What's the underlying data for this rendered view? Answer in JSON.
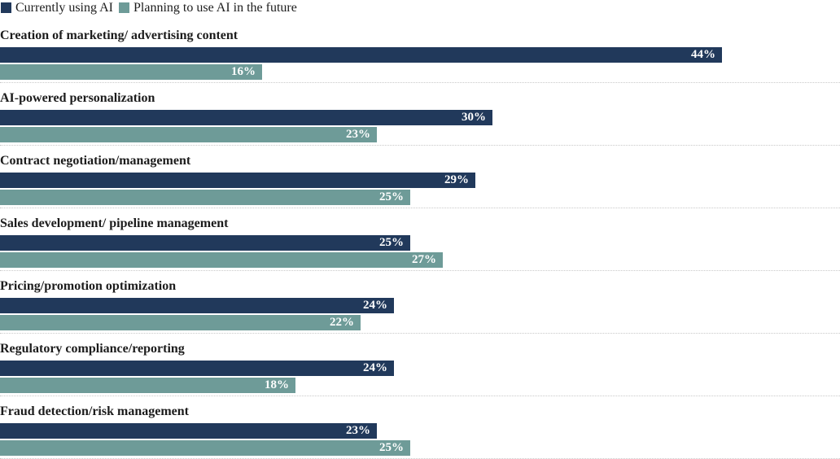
{
  "chart_data": {
    "type": "bar",
    "orientation": "horizontal",
    "title": "",
    "legend_position": "top-left",
    "grid": "dotted-row-separators",
    "value_suffix": "%",
    "xlim": [
      0,
      51
    ],
    "legend": [
      {
        "label": "Currently using AI",
        "color": "#21395b"
      },
      {
        "label": "Planning to use AI in the future",
        "color": "#6e9b98"
      }
    ],
    "categories": [
      "Creation of marketing/ advertising content",
      "AI-powered personalization",
      "Contract negotiation/management",
      "Sales development/ pipeline management",
      "Pricing/promotion optimization",
      "Regulatory compliance/reporting",
      "Fraud detection/risk management"
    ],
    "series": [
      {
        "name": "Currently using AI",
        "values": [
          44,
          30,
          29,
          25,
          24,
          24,
          23
        ]
      },
      {
        "name": "Planning to use AI in the future",
        "values": [
          16,
          23,
          25,
          27,
          22,
          18,
          25
        ]
      }
    ]
  },
  "colors": {
    "bar_current": "#21395b",
    "bar_planning": "#6e9b98",
    "separator": "#c9c9c9",
    "text": "#1c1c1c",
    "value_label": "#ffffff",
    "background": "#ffffff"
  }
}
